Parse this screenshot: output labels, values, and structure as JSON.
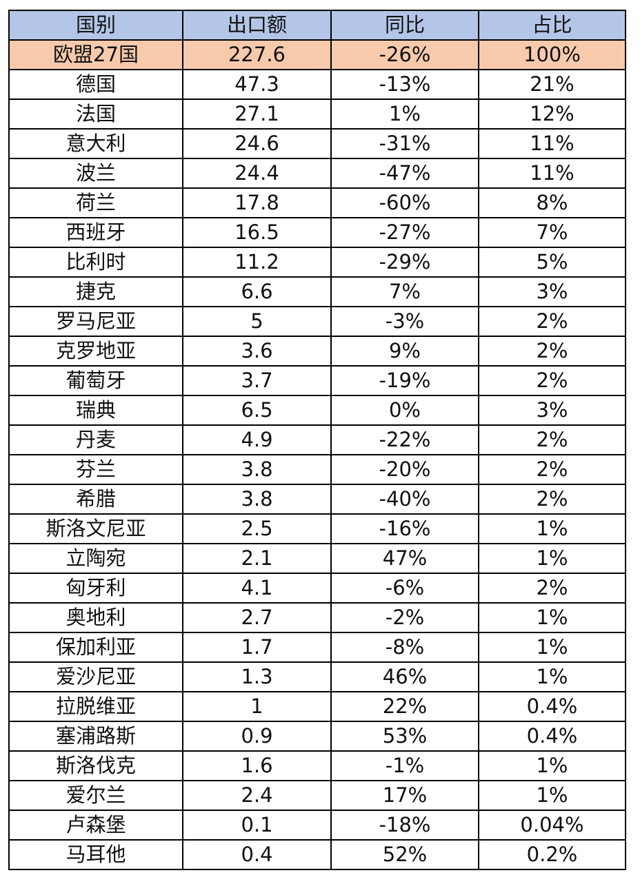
{
  "table": {
    "headers": [
      "国别",
      "出口额",
      "同比",
      "占比"
    ],
    "colors": {
      "header_bg": "#b4c6e7",
      "total_bg": "#f7caac",
      "row_bg": "#ffffff",
      "border": "#000000"
    },
    "rows": [
      [
        "欧盟27国",
        "227.6",
        "-26%",
        "100%"
      ],
      [
        "德国",
        "47.3",
        "-13%",
        "21%"
      ],
      [
        "法国",
        "27.1",
        "1%",
        "12%"
      ],
      [
        "意大利",
        "24.6",
        "-31%",
        "11%"
      ],
      [
        "波兰",
        "24.4",
        "-47%",
        "11%"
      ],
      [
        "荷兰",
        "17.8",
        "-60%",
        "8%"
      ],
      [
        "西班牙",
        "16.5",
        "-27%",
        "7%"
      ],
      [
        "比利时",
        "11.2",
        "-29%",
        "5%"
      ],
      [
        "捷克",
        "6.6",
        "7%",
        "3%"
      ],
      [
        "罗马尼亚",
        "5",
        "-3%",
        "2%"
      ],
      [
        "克罗地亚",
        "3.6",
        "9%",
        "2%"
      ],
      [
        "葡萄牙",
        "3.7",
        "-19%",
        "2%"
      ],
      [
        "瑞典",
        "6.5",
        "0%",
        "3%"
      ],
      [
        "丹麦",
        "4.9",
        "-22%",
        "2%"
      ],
      [
        "芬兰",
        "3.8",
        "-20%",
        "2%"
      ],
      [
        "希腊",
        "3.8",
        "-40%",
        "2%"
      ],
      [
        "斯洛文尼亚",
        "2.5",
        "-16%",
        "1%"
      ],
      [
        "立陶宛",
        "2.1",
        "47%",
        "1%"
      ],
      [
        "匈牙利",
        "4.1",
        "-6%",
        "2%"
      ],
      [
        "奥地利",
        "2.7",
        "-2%",
        "1%"
      ],
      [
        "保加利亚",
        "1.7",
        "-8%",
        "1%"
      ],
      [
        "爱沙尼亚",
        "1.3",
        "46%",
        "1%"
      ],
      [
        "拉脱维亚",
        "1",
        "22%",
        "0.4%"
      ],
      [
        "塞浦路斯",
        "0.9",
        "53%",
        "0.4%"
      ],
      [
        "斯洛伐克",
        "1.6",
        "-1%",
        "1%"
      ],
      [
        "爱尔兰",
        "2.4",
        "17%",
        "1%"
      ],
      [
        "卢森堡",
        "0.1",
        "-18%",
        "0.04%"
      ],
      [
        "马耳他",
        "0.4",
        "52%",
        "0.2%"
      ]
    ]
  }
}
